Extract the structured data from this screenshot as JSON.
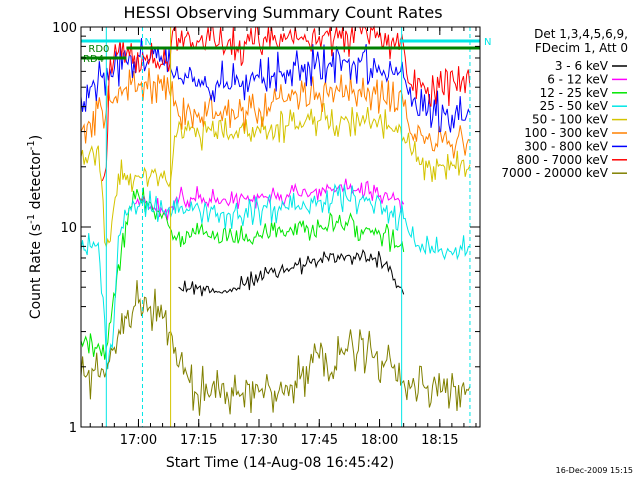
{
  "chart_data": {
    "type": "line",
    "title": "HESSI Observing Summary Count Rates",
    "xlabel": "Start Time (14-Aug-08 16:45:42)",
    "ylabel": "Count Rate (s",
    "ylabel_sup": "-1",
    "ylabel_tail": " detector",
    "ylabel_sup2": "-1",
    "ylabel_end": ")",
    "yscale": "log",
    "ylim": [
      1,
      100
    ],
    "y_ticks": [
      {
        "value": 1,
        "label": "1"
      },
      {
        "value": 10,
        "label": "10"
      },
      {
        "value": 100,
        "label": "100"
      }
    ],
    "xlim": [
      "16:45:42",
      "18:25:00"
    ],
    "x_ticks": [
      "17:00",
      "17:15",
      "17:30",
      "17:45",
      "18:00",
      "18:15"
    ],
    "footer_date": "16-Dec-2009 15:15",
    "legend": {
      "header_lines": [
        "Det 1,3,4,5,6,9,",
        "FDecim 1, Att 0"
      ],
      "placement": "right"
    },
    "markers": [
      {
        "label": "N",
        "color": "#00e6e6",
        "start": "16:45:42",
        "end": "17:00:30"
      },
      {
        "label": "N",
        "color": "#00e6e6",
        "start": "18:05:00",
        "end": "18:25:00"
      },
      {
        "label": "RD0",
        "color": "#008000",
        "start": "16:57:00",
        "end": "18:25:00"
      },
      {
        "label": "RD4",
        "color": "#008000",
        "start": "16:45:42",
        "end": "16:57:00"
      }
    ],
    "vlines": [
      {
        "time": "16:52:00",
        "color": "#00e6e6",
        "style": "solid"
      },
      {
        "time": "17:01:00",
        "color": "#00e6e6",
        "style": "dashed"
      },
      {
        "time": "17:08:00",
        "color": "#d4c400",
        "style": "solid"
      },
      {
        "time": "18:05:30",
        "color": "#00e6e6",
        "style": "solid"
      },
      {
        "time": "18:22:30",
        "color": "#00e6e6",
        "style": "dashed"
      }
    ],
    "series": [
      {
        "name": "3 - 6 keV",
        "color": "#000000",
        "x": [
          "16:45:42",
          "17:06:00",
          "17:08:00",
          "17:10:00",
          "17:15:00",
          "17:22:00",
          "17:30:00",
          "17:37:00",
          "17:45:00",
          "17:52:00",
          "17:59:00",
          "18:03:00",
          "18:05:00",
          "18:06:00",
          "18:07:30"
        ],
        "y": [
          null,
          null,
          null,
          5.0,
          5.0,
          4.7,
          5.6,
          6.2,
          6.8,
          7.2,
          7.0,
          6.0,
          5.0,
          4.6,
          null
        ]
      },
      {
        "name": "6 - 12 keV",
        "color": "#ff00ff",
        "x": [
          "16:45:42",
          "16:52:00",
          "16:56:00",
          "16:59:00",
          "17:01:00",
          "17:04:00",
          "17:06:00",
          "17:08:00",
          "17:11:00",
          "17:15:00",
          "17:22:00",
          "17:30:00",
          "17:37:00",
          "17:45:00",
          "17:52:00",
          "17:59:00",
          "18:03:00",
          "18:05:00",
          "18:06:00",
          "18:07:30"
        ],
        "y": [
          null,
          null,
          null,
          13.0,
          13.5,
          12.5,
          12.0,
          12.5,
          14.5,
          14.0,
          13.2,
          14.0,
          14.5,
          15.5,
          15.5,
          15.0,
          14.0,
          13.5,
          13.0,
          null
        ]
      },
      {
        "name": "12 - 25 keV",
        "color": "#00e600",
        "x": [
          "16:45:42",
          "16:50:00",
          "16:52:00",
          "16:55:00",
          "16:58:00",
          "17:00:00",
          "17:02:00",
          "17:05:00",
          "17:07:00",
          "17:09:00",
          "17:12:00",
          "17:15:00",
          "17:22:00",
          "17:30:00",
          "17:37:00",
          "17:45:00",
          "17:52:00",
          "17:59:00",
          "18:03:00",
          "18:06:00",
          "18:07:30"
        ],
        "y": [
          2.7,
          2.6,
          2.5,
          6.5,
          12.5,
          14.5,
          13.5,
          12.0,
          11.0,
          9.0,
          9.5,
          9.2,
          8.5,
          9.0,
          9.5,
          10.0,
          10.2,
          9.8,
          8.6,
          7.5,
          null
        ]
      },
      {
        "name": "25 - 50 keV",
        "color": "#00e6e6",
        "x": [
          "16:45:42",
          "16:48:00",
          "16:50:00",
          "16:52:00",
          "16:53:30",
          "16:55:00",
          "16:57:00",
          "16:59:00",
          "17:01:00",
          "17:04:00",
          "17:06:00",
          "17:08:00",
          "17:10:00",
          "17:12:00",
          "17:15:00",
          "17:22:00",
          "17:30:00",
          "17:37:00",
          "17:45:00",
          "17:52:00",
          "17:59:00",
          "18:03:00",
          "18:06:00",
          "18:09:00",
          "18:15:00",
          "18:22:30"
        ],
        "y": [
          7.6,
          8.0,
          8.3,
          2.2,
          2.5,
          9.0,
          11.5,
          13.0,
          13.2,
          12.5,
          12.0,
          11.2,
          11.8,
          12.3,
          12.5,
          11.5,
          12.0,
          12.5,
          13.5,
          13.8,
          13.2,
          12.0,
          11.0,
          8.0,
          7.7,
          8.0
        ]
      },
      {
        "name": "50 - 100 keV",
        "color": "#d4c400",
        "x": [
          "16:45:42",
          "16:48:00",
          "16:50:00",
          "16:52:00",
          "16:53:00",
          "16:55:00",
          "16:58:00",
          "17:00:00",
          "17:03:00",
          "17:06:00",
          "17:08:00",
          "17:09:00",
          "17:12:00",
          "17:15:00",
          "17:22:00",
          "17:30:00",
          "17:37:00",
          "17:45:00",
          "17:52:00",
          "17:59:00",
          "18:03:00",
          "18:06:00",
          "18:08:00",
          "18:10:00",
          "18:15:00",
          "18:22:30"
        ],
        "y": [
          22.5,
          24.0,
          25.5,
          8.0,
          8.5,
          18.5,
          18.5,
          18.0,
          18.0,
          17.5,
          17.0,
          28.5,
          30.5,
          29.5,
          29.0,
          31.0,
          32.0,
          34.0,
          34.5,
          34.0,
          31.0,
          28.0,
          23.0,
          20.5,
          20.5,
          20.5
        ]
      },
      {
        "name": "100 - 300 keV",
        "color": "#ff8000",
        "x": [
          "16:45:42",
          "16:48:00",
          "16:51:00",
          "16:54:00",
          "16:57:00",
          "17:00:00",
          "17:03:00",
          "17:06:00",
          "17:08:00",
          "17:10:00",
          "17:12:00",
          "17:15:00",
          "17:22:00",
          "17:30:00",
          "17:37:00",
          "17:45:00",
          "17:52:00",
          "17:59:00",
          "18:03:00",
          "18:06:00",
          "18:08:00",
          "18:12:00",
          "18:22:30"
        ],
        "y": [
          30.0,
          33.0,
          38.0,
          44.0,
          50.0,
          52.0,
          50.0,
          48.0,
          45.0,
          36.0,
          38.0,
          37.0,
          36.0,
          39.0,
          43.0,
          47.0,
          47.5,
          46.0,
          43.0,
          40.0,
          29.0,
          27.5,
          27.0
        ]
      },
      {
        "name": "300 - 800 keV",
        "color": "#0000ff",
        "x": [
          "16:45:42",
          "16:48:00",
          "16:51:00",
          "16:54:00",
          "16:57:00",
          "17:00:00",
          "17:03:00",
          "17:06:00",
          "17:08:00",
          "17:10:00",
          "17:12:00",
          "17:15:00",
          "17:22:00",
          "17:30:00",
          "17:37:00",
          "17:45:00",
          "17:52:00",
          "17:59:00",
          "18:03:00",
          "18:06:00",
          "18:08:00",
          "18:12:00",
          "18:22:30"
        ],
        "y": [
          45.0,
          50.0,
          56.0,
          62.0,
          67.0,
          72.0,
          70.0,
          66.0,
          62.0,
          55.0,
          56.0,
          55.0,
          53.0,
          56.0,
          61.0,
          66.0,
          66.5,
          64.0,
          61.0,
          56.0,
          40.0,
          38.0,
          37.0
        ]
      },
      {
        "name": "800 - 7000 keV",
        "color": "#ff0000",
        "x": [
          "16:45:42",
          "16:51:00",
          "16:51:30",
          "16:52:00",
          "16:53:00",
          "16:55:00",
          "16:57:00",
          "16:59:00",
          "17:01:00",
          "17:04:00",
          "17:06:00",
          "17:07:30",
          "17:08:30",
          "17:10:00",
          "17:15:00",
          "17:22:00",
          "17:30:00",
          "17:37:00",
          "17:45:00",
          "17:52:00",
          "17:59:00",
          "18:03:00",
          "18:06:00",
          "18:07:30",
          "18:12:00",
          "18:22:30"
        ],
        "y": [
          null,
          17.0,
          18.0,
          20.0,
          70.0,
          75.0,
          73.0,
          72.0,
          73.0,
          70.0,
          65.0,
          60.0,
          95.0,
          88.0,
          84.0,
          80.0,
          84.0,
          88.0,
          90.0,
          91.0,
          88.0,
          84.0,
          80.0,
          52.0,
          50.0,
          50.0
        ]
      },
      {
        "name": "7000 - 20000 keV",
        "color": "#808000",
        "x": [
          "16:45:42",
          "16:50:00",
          "16:52:00",
          "16:54:00",
          "16:57:00",
          "17:00:00",
          "17:03:00",
          "17:06:00",
          "17:08:00",
          "17:10:00",
          "17:14:00",
          "17:22:00",
          "17:30:00",
          "17:37:00",
          "17:45:00",
          "17:52:00",
          "17:59:00",
          "18:03:00",
          "18:06:00",
          "18:08:00",
          "18:12:00",
          "18:22:30"
        ],
        "y": [
          1.8,
          1.8,
          1.9,
          2.5,
          3.5,
          4.2,
          4.0,
          3.5,
          3.0,
          2.0,
          1.5,
          1.5,
          1.5,
          1.6,
          2.2,
          2.4,
          2.3,
          2.0,
          1.7,
          1.6,
          1.6,
          1.6
        ]
      }
    ]
  }
}
